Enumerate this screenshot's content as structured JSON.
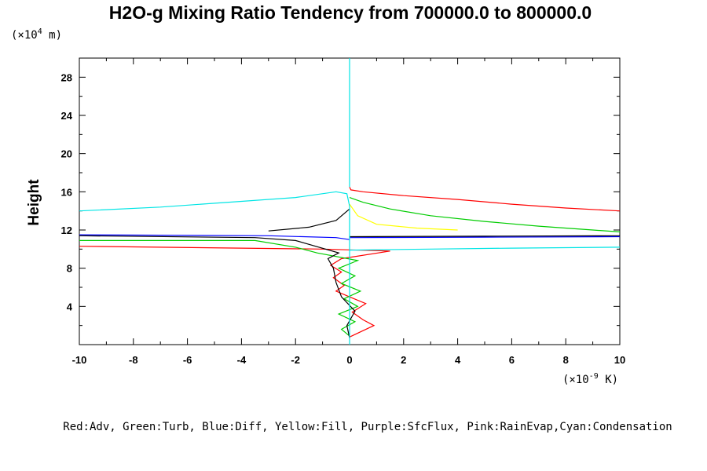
{
  "chart_data": {
    "type": "line",
    "title": "H2O-g Mixing Ratio Tendency from 700000.0 to 800000.0",
    "ylabel": "Height",
    "y_unit_prefix": "(×10",
    "y_unit_exp": "4",
    "y_unit_suffix": " m)",
    "x_unit_prefix": "(×10",
    "x_unit_exp": "-9",
    "x_unit_suffix": " K)",
    "xlim": [
      -10,
      10
    ],
    "ylim": [
      0,
      30
    ],
    "x_ticks": [
      "-10",
      "-8",
      "-6",
      "-4",
      "-2",
      "0",
      "2",
      "4",
      "6",
      "8",
      "10"
    ],
    "y_ticks": [
      "4",
      "8",
      "12",
      "16",
      "20",
      "24",
      "28"
    ],
    "legend_text": "Red:Adv, Green:Turb, Blue:Diff, Yellow:Fill, Purple:SfcFlux, Pink:RainEvap,Cyan:Condensation",
    "series": [
      {
        "color": "#ff0000",
        "points": [
          [
            0.0,
            0.8
          ],
          [
            0.3,
            1.2
          ],
          [
            0.9,
            2.0
          ],
          [
            0.5,
            2.6
          ],
          [
            0.1,
            3.4
          ],
          [
            0.6,
            4.3
          ],
          [
            0.0,
            5.0
          ],
          [
            -0.5,
            5.6
          ],
          [
            -0.2,
            6.2
          ],
          [
            -0.6,
            7.0
          ],
          [
            -0.3,
            7.6
          ],
          [
            -0.7,
            8.3
          ],
          [
            -0.3,
            9.0
          ],
          [
            1.5,
            9.8
          ],
          [
            -1.0,
            10.0
          ],
          [
            -10.0,
            10.3
          ]
        ]
      },
      {
        "color": "#ff0000",
        "points": [
          [
            0.0,
            16.5
          ],
          [
            0.05,
            16.2
          ],
          [
            0.5,
            16.0
          ],
          [
            2.0,
            15.6
          ],
          [
            4.0,
            15.2
          ],
          [
            6.0,
            14.7
          ],
          [
            8.0,
            14.3
          ],
          [
            10.0,
            14.0
          ]
        ]
      },
      {
        "color": "#00cc00",
        "points": [
          [
            0.0,
            0.9
          ],
          [
            -0.3,
            1.6
          ],
          [
            0.2,
            2.4
          ],
          [
            -0.4,
            3.2
          ],
          [
            0.3,
            4.0
          ],
          [
            -0.2,
            4.8
          ],
          [
            0.4,
            5.6
          ],
          [
            -0.3,
            6.4
          ],
          [
            0.2,
            7.2
          ],
          [
            -0.4,
            8.0
          ],
          [
            0.3,
            8.8
          ],
          [
            -1.2,
            9.6
          ],
          [
            -2.0,
            10.2
          ],
          [
            -3.5,
            10.9
          ],
          [
            -10.0,
            10.9
          ]
        ]
      },
      {
        "color": "#00cc00",
        "points": [
          [
            0.0,
            15.4
          ],
          [
            0.5,
            14.9
          ],
          [
            1.5,
            14.2
          ],
          [
            3.0,
            13.5
          ],
          [
            5.0,
            12.9
          ],
          [
            7.0,
            12.4
          ],
          [
            9.0,
            12.0
          ],
          [
            10.0,
            11.8
          ]
        ]
      },
      {
        "color": "#0000ff",
        "points": [
          [
            0.0,
            11.0
          ],
          [
            -0.5,
            11.2
          ],
          [
            -3.0,
            11.4
          ],
          [
            -10.0,
            11.5
          ]
        ]
      },
      {
        "color": "#0000ff",
        "points": [
          [
            0.0,
            11.2
          ],
          [
            5.0,
            11.25
          ],
          [
            10.0,
            11.3
          ]
        ]
      },
      {
        "color": "#ffff00",
        "points": [
          [
            0.0,
            14.7
          ],
          [
            0.3,
            13.5
          ],
          [
            1.0,
            12.6
          ],
          [
            2.5,
            12.2
          ],
          [
            4.0,
            12.0
          ]
        ]
      },
      {
        "color": "#000000",
        "points": [
          [
            0.0,
            0.7
          ],
          [
            -0.1,
            2.0
          ],
          [
            0.2,
            3.5
          ],
          [
            -0.3,
            5.0
          ],
          [
            -0.5,
            6.5
          ],
          [
            -0.6,
            8.0
          ],
          [
            -0.8,
            9.0
          ],
          [
            -0.4,
            9.6
          ],
          [
            -1.5,
            10.5
          ],
          [
            -2.0,
            10.9
          ],
          [
            -3.5,
            11.2
          ],
          [
            -10.0,
            11.4
          ]
        ]
      },
      {
        "color": "#000000",
        "points": [
          [
            0.0,
            14.2
          ],
          [
            -0.5,
            13.0
          ],
          [
            -1.5,
            12.3
          ],
          [
            -3.0,
            11.9
          ]
        ]
      },
      {
        "color": "#000000",
        "points": [
          [
            0.0,
            11.3
          ],
          [
            5.0,
            11.35
          ],
          [
            10.0,
            11.4
          ]
        ]
      },
      {
        "color": "#00e5e5",
        "points": [
          [
            0.0,
            0.0
          ],
          [
            0.0,
            14.5
          ],
          [
            -0.1,
            15.8
          ],
          [
            -0.5,
            16.0
          ],
          [
            -2.0,
            15.4
          ],
          [
            -4.0,
            15.0
          ],
          [
            -7.0,
            14.4
          ],
          [
            -10.0,
            14.0
          ]
        ]
      },
      {
        "color": "#00e5e5",
        "points": [
          [
            0.0,
            16.5
          ],
          [
            0.0,
            30.0
          ]
        ]
      },
      {
        "color": "#00e5e5",
        "points": [
          [
            0.0,
            9.9
          ],
          [
            3.0,
            10.0
          ],
          [
            6.0,
            10.1
          ],
          [
            10.0,
            10.2
          ]
        ]
      }
    ]
  }
}
